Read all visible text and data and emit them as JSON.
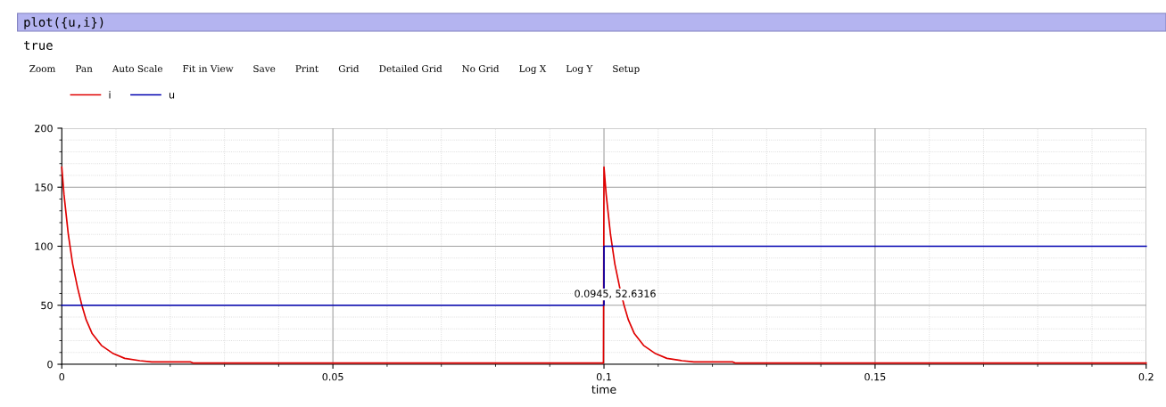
{
  "chart_data": {
    "type": "line",
    "xlabel": "time",
    "x": [
      0,
      0.0004,
      0.0012,
      0.002,
      0.0029,
      0.0037,
      0.0045,
      0.0056,
      0.0073,
      0.0095,
      0.0116,
      0.0144,
      0.0166,
      0.0237,
      0.0243,
      0.0999,
      0.1,
      0.1004,
      0.1012,
      0.102,
      0.1029,
      0.1037,
      0.1045,
      0.1056,
      0.1073,
      0.1095,
      0.1116,
      0.1144,
      0.1166,
      0.1237,
      0.1243,
      0.2
    ],
    "series": [
      {
        "name": "i",
        "color": "#e00000",
        "values": [
          167,
          144,
          110,
          85,
          65,
          50,
          37.6,
          26,
          16,
          9,
          5,
          3,
          2,
          2,
          1,
          1,
          167,
          144,
          110,
          85,
          65,
          50,
          37.6,
          26,
          16,
          9,
          5,
          3,
          2,
          2,
          1,
          1
        ]
      },
      {
        "name": "u",
        "color": "#0000b0",
        "x": [
          0,
          0.1,
          0.1,
          0.2
        ],
        "values": [
          50,
          50,
          100,
          100
        ]
      }
    ],
    "xlim": [
      0,
      0.2
    ],
    "ylim": [
      0,
      200
    ],
    "xticks": [
      0,
      0.05,
      0.1,
      0.15,
      0.2
    ],
    "yticks": [
      0,
      50,
      100,
      150,
      200
    ],
    "grid": true,
    "legend": "top left",
    "annotations": [
      {
        "text": "0.0945, 52.6316",
        "x": 0.0945,
        "y": 52.6316
      },
      "plot({u,i})",
      "true",
      "Zoom",
      "Pan",
      "Auto Scale",
      "Fit in View",
      "Save",
      "Print",
      "Grid",
      "Detailed Grid",
      "No Grid",
      "Log X",
      "Log Y",
      "Setup"
    ]
  }
}
